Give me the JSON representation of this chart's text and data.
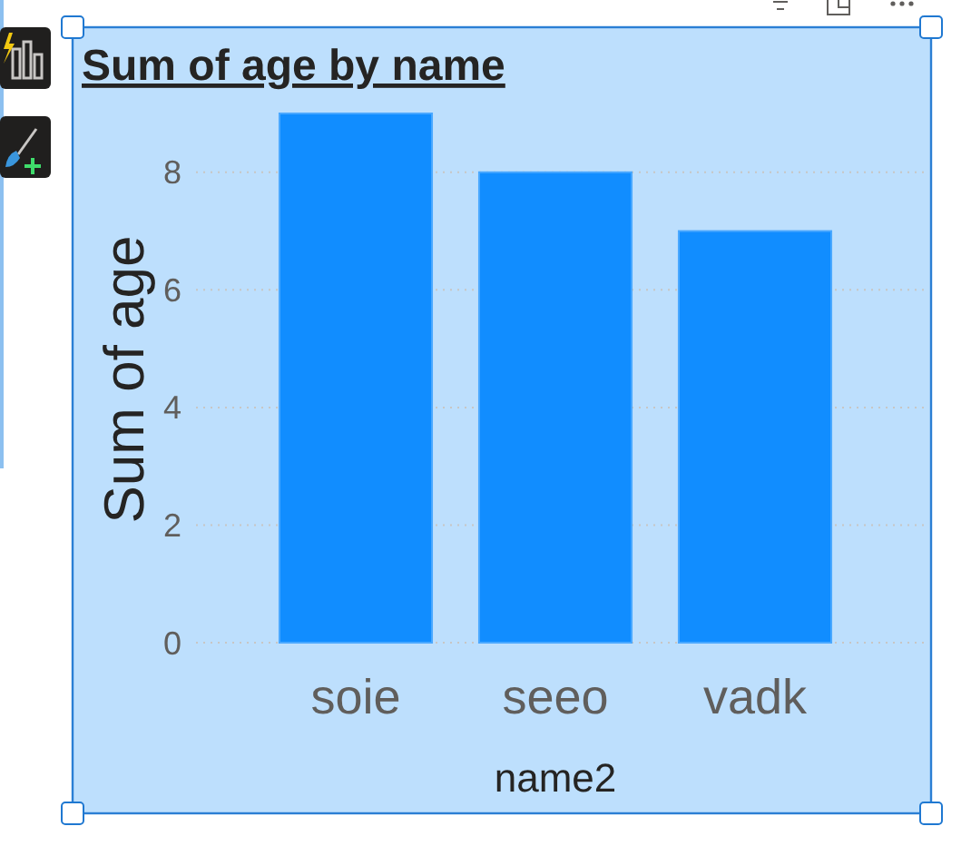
{
  "chart_data": {
    "type": "bar",
    "title": "Sum of age by name",
    "xlabel": "name2",
    "ylabel": "Sum of age",
    "categories": [
      "soie",
      "seeo",
      "vadk"
    ],
    "values": [
      9,
      8,
      7
    ],
    "color": "#118dff",
    "ylim": [
      0,
      9
    ],
    "yticks": [
      0,
      2,
      4,
      6,
      8
    ],
    "grid": "y"
  }
}
